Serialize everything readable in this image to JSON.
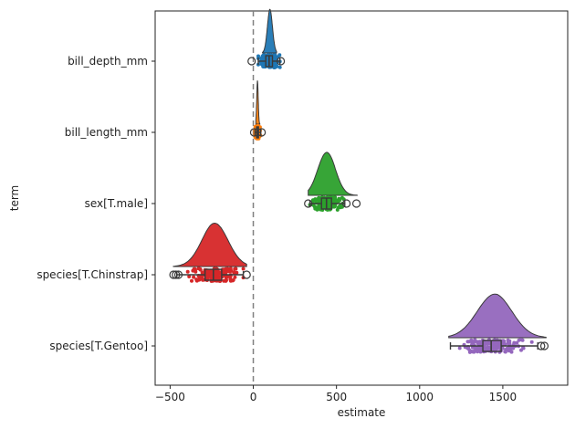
{
  "chart_data": {
    "type": "raincloud",
    "title": "",
    "xlabel": "estimate",
    "ylabel": "term",
    "xlim": [
      -590,
      1890
    ],
    "xticks": [
      -500,
      0,
      500,
      1000,
      1500
    ],
    "reference_line": {
      "x": 0,
      "style": "dashed",
      "color": "#808080"
    },
    "grid": false,
    "terms": [
      {
        "name": "bill_depth_mm",
        "color": "#1f77b4",
        "min": 30,
        "q1": 75,
        "median": 95,
        "q3": 115,
        "max": 160,
        "outliers": [
          -10,
          165
        ],
        "density_range": [
          55,
          140
        ],
        "density_peak": 100
      },
      {
        "name": "bill_length_mm",
        "color": "#ff7f0e",
        "min": 10,
        "q1": 20,
        "median": 25,
        "q3": 30,
        "max": 45,
        "outliers": [
          5,
          50
        ],
        "density_range": [
          15,
          40
        ],
        "density_peak": 25
      },
      {
        "name": "sex[T.male]",
        "color": "#2ca02c",
        "min": 340,
        "q1": 410,
        "median": 440,
        "q3": 470,
        "max": 550,
        "outliers": [
          330,
          560,
          620
        ],
        "density_range": [
          330,
          625
        ],
        "density_peak": 440
      },
      {
        "name": "species[T.Chinstrap]",
        "color": "#d62728",
        "min": -460,
        "q1": -290,
        "median": -240,
        "q3": -190,
        "max": -60,
        "outliers": [
          -480,
          -465,
          -450,
          -40
        ],
        "density_range": [
          -480,
          -40
        ],
        "density_peak": -230
      },
      {
        "name": "species[T.Gentoo]",
        "color": "#9467bd",
        "min": 1185,
        "q1": 1380,
        "median": 1430,
        "q3": 1490,
        "max": 1710,
        "outliers": [
          1730,
          1750
        ],
        "density_range": [
          1175,
          1760
        ],
        "density_peak": 1450
      }
    ]
  }
}
